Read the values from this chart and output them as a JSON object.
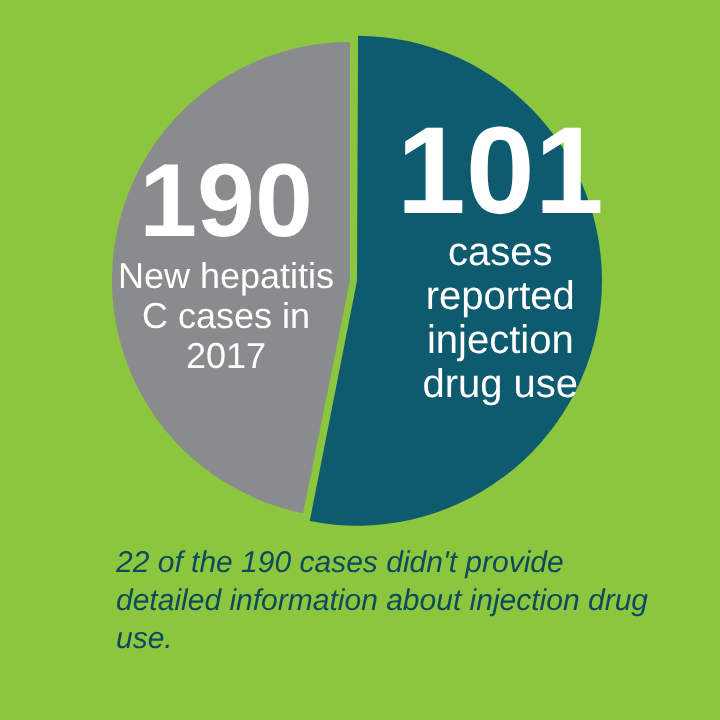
{
  "chart_data": {
    "type": "pie",
    "categories": [
      "cases reported injection drug use",
      null
    ],
    "values": [
      101,
      89
    ],
    "colors": [
      "#0e5a6e",
      "#898b8d"
    ],
    "value_labels": [
      "101",
      null
    ],
    "annotations": [
      "190",
      "New hepatitis C cases in 2017",
      "22 of the 190 cases didn't  provide detailed information about injection drug use."
    ],
    "legend": false
  }
}
